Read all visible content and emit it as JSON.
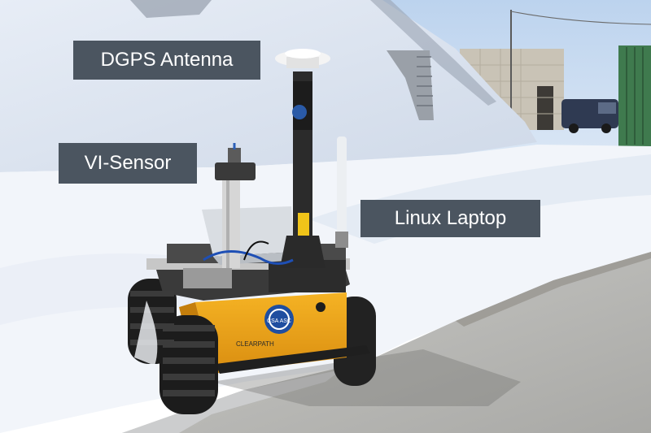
{
  "labels": {
    "dgps_antenna": "DGPS Antenna",
    "vi_sensor": "VI-Sensor",
    "linux_laptop": "Linux Laptop"
  },
  "rover": {
    "logo_text": "CSA ASC",
    "brand_text": "CLEARPATH"
  },
  "colors": {
    "label_bg": "#4b5560",
    "rover_yellow": "#f0a718",
    "sky": "#c9dcf2",
    "snow": "#f4f7fb"
  }
}
